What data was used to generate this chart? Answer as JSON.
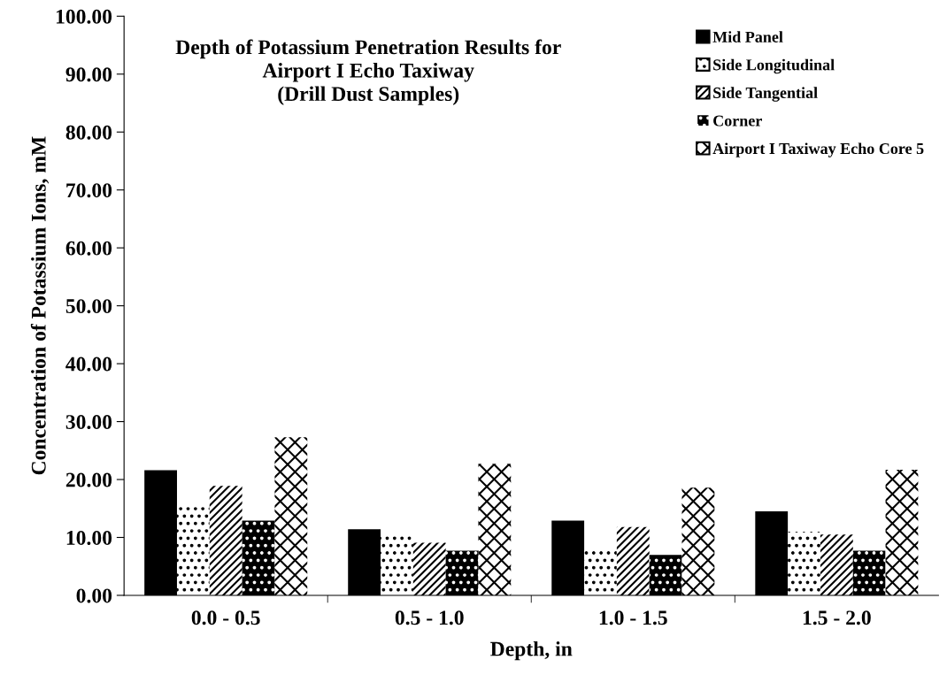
{
  "chart_data": {
    "type": "bar",
    "title": "Depth of Potassium Penetration Results for\nAirport I Echo Taxiway\n(Drill Dust Samples)",
    "xlabel": "Depth, in",
    "ylabel": "Concentration of Potassium Ions, mM",
    "categories": [
      "0.0 - 0.5",
      "0.5 - 1.0",
      "1.0 - 1.5",
      "1.5 - 2.0"
    ],
    "series": [
      {
        "name": "Mid Panel",
        "color": "#000000",
        "values": [
          21.6,
          11.4,
          12.9,
          14.5
        ]
      },
      {
        "name": "Side Longitudinal",
        "color": "#ffffff",
        "values": [
          15.7,
          10.3,
          7.8,
          11.0
        ]
      },
      {
        "name": "Side Tangential",
        "color": "#ffffff",
        "values": [
          18.9,
          9.1,
          11.8,
          10.5
        ]
      },
      {
        "name": "Corner",
        "color": "#000000",
        "values": [
          12.9,
          7.7,
          7.0,
          7.7
        ]
      },
      {
        "name": "Airport I Taxiway Echo Core 5",
        "color": "#ffffff",
        "values": [
          27.3,
          22.7,
          18.6,
          21.7
        ]
      }
    ],
    "ylim": [
      0,
      100
    ],
    "yticks": [
      {
        "value": 0,
        "label": "0.00"
      },
      {
        "value": 10,
        "label": "10.00"
      },
      {
        "value": 20,
        "label": "20.00"
      },
      {
        "value": 30,
        "label": "30.00"
      },
      {
        "value": 40,
        "label": "40.00"
      },
      {
        "value": 50,
        "label": "50.00"
      },
      {
        "value": 60,
        "label": "60.00"
      },
      {
        "value": 70,
        "label": "70.00"
      },
      {
        "value": 80,
        "label": "80.00"
      },
      {
        "value": 90,
        "label": "90.00"
      },
      {
        "value": 100,
        "label": "100.00"
      }
    ],
    "grid": false,
    "legend": "top right"
  }
}
